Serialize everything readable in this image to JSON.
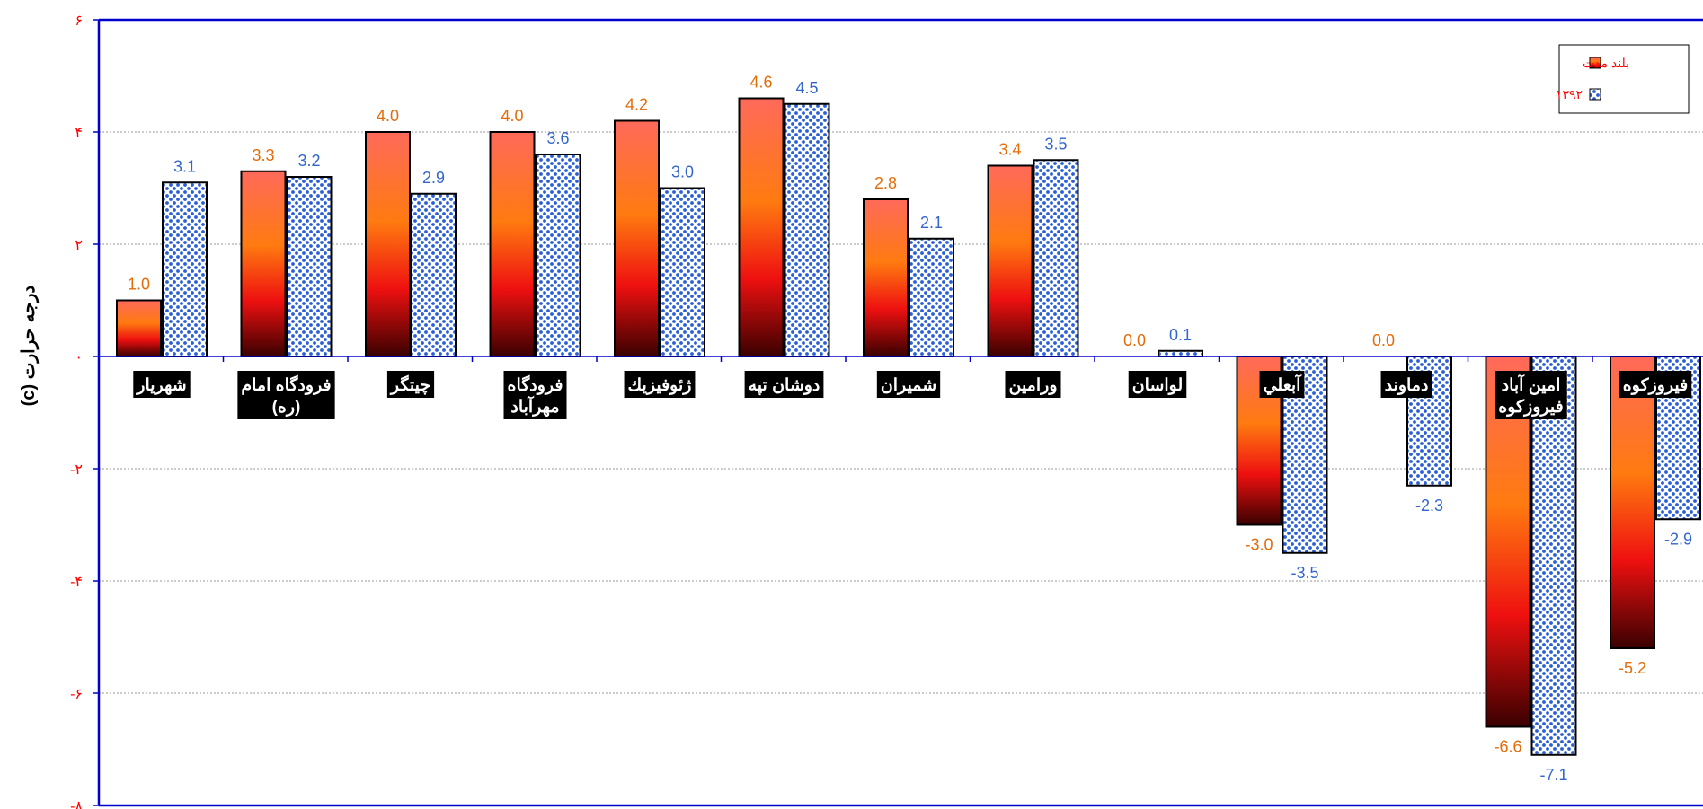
{
  "chart_data": {
    "type": "bar",
    "ylabel": "درجه حرارت (c)",
    "ylim": [
      -8,
      6
    ],
    "yticks": [
      6,
      4,
      2,
      0,
      -2,
      -4,
      -6,
      -8
    ],
    "ytick_labels": [
      "۶",
      "۴",
      "۲",
      "۰",
      "-۲",
      "-۴",
      "-۶",
      "-۸"
    ],
    "grid": true,
    "legend_position": "top-right",
    "categories": [
      "شهريار",
      "فرودگاه امام (ره)",
      "چيتگر",
      "فرودگاه مهرآباد",
      "ژئوفيزيك",
      "دوشان تپه",
      "شميران",
      "ورامين",
      "لواسان",
      "آبعلي",
      "دماوند",
      "امين آباد فيروزكوه",
      "فيروزكوه"
    ],
    "series": [
      {
        "name": "بلند مدت",
        "values": [
          1.0,
          3.3,
          4.0,
          4.0,
          4.2,
          4.6,
          2.8,
          3.4,
          0.0,
          -3.0,
          0.0,
          -6.6,
          -5.2
        ]
      },
      {
        "name": "۱۳۹۲",
        "values": [
          3.1,
          3.2,
          2.9,
          3.6,
          3.0,
          4.5,
          2.1,
          3.5,
          0.1,
          -3.5,
          -2.3,
          -7.1,
          -2.9
        ]
      }
    ],
    "value_labels": [
      [
        "1.0",
        "3.3",
        "4.0",
        "4.0",
        "4.2",
        "4.6",
        "2.8",
        "3.4",
        "0.0",
        "-3.0",
        "0.0",
        "-6.6",
        "-5.2"
      ],
      [
        "3.1",
        "3.2",
        "2.9",
        "3.6",
        "3.0",
        "4.5",
        "2.1",
        "3.5",
        "0.1",
        "-3.5",
        "-2.3",
        "-7.1",
        "-2.9"
      ]
    ],
    "colors": {
      "axis": "#0000cc",
      "tick_text": "#ff0000",
      "series1_label": "#e36c09",
      "series2_label": "#3366cc",
      "series2_dots": "#2a5fd6",
      "category_bg": "#000000",
      "category_text": "#ffffff",
      "legend_text": "#ff0000"
    }
  }
}
